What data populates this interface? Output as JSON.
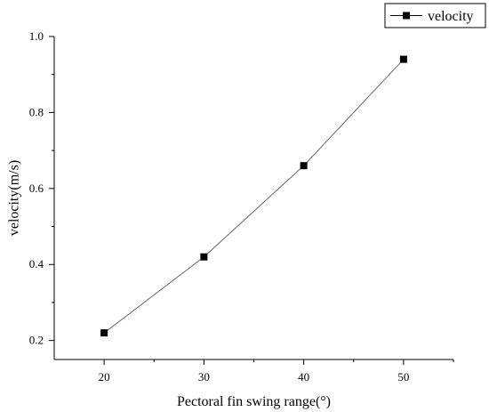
{
  "chart_data": {
    "type": "line",
    "xlabel": "Pectoral fin swing range(°)",
    "ylabel": "velocity(m/s)",
    "xlim": [
      15,
      55
    ],
    "ylim": [
      0.15,
      1.0
    ],
    "x_ticks": [
      20,
      30,
      40,
      50
    ],
    "x_tick_labels": [
      "20",
      "30",
      "40",
      "50"
    ],
    "y_ticks": [
      0.2,
      0.4,
      0.6,
      0.8,
      1.0
    ],
    "y_tick_labels": [
      "0.2",
      "0.4",
      "0.6",
      "0.8",
      "1.0"
    ],
    "legend_placement": "top-right",
    "grid": false,
    "series": [
      {
        "name": "velocity",
        "marker": "square",
        "color": "#000000",
        "x": [
          20,
          30,
          40,
          50
        ],
        "y": [
          0.22,
          0.42,
          0.66,
          0.94
        ]
      }
    ]
  }
}
